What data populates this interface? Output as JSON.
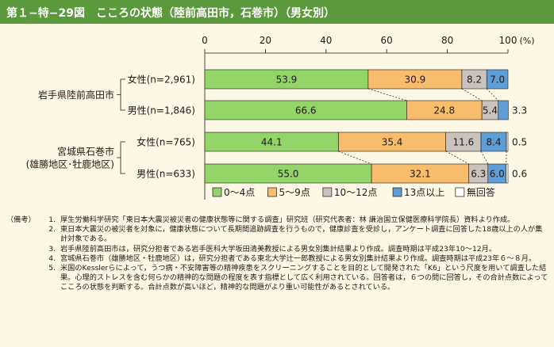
{
  "title": "第１−特−29図　こころの状態（陸前高田市，石巻市）（男女別）",
  "chart_data": {
    "type": "bar",
    "stacked": "horizontal-100pct",
    "x_unit": "(%)",
    "xlim": [
      0,
      100
    ],
    "x_ticks": [
      "0",
      "20",
      "40",
      "60",
      "80",
      "100"
    ],
    "grid": false,
    "legend_position": "bottom",
    "colors": [
      "#92d468",
      "#f8bd6c",
      "#c8c3be",
      "#5d9ed8",
      "#ffffff"
    ],
    "groups": [
      {
        "label": "岩手県陸前高田市",
        "categories": [
          "女性(n=2,961)",
          "男性(n=1,846)"
        ]
      },
      {
        "label": "宮城県石巻市\n(雄勝地区･牡鹿地区)",
        "categories": [
          "女性(n=765)",
          "男性(n=633)"
        ]
      }
    ],
    "categories": [
      "女性(n=2,961)",
      "男性(n=1,846)",
      "女性(n=765)",
      "男性(n=633)"
    ],
    "series": [
      {
        "name": "0〜4点",
        "values": [
          53.9,
          66.6,
          44.1,
          55.0
        ],
        "labels": [
          "53.9",
          "66.6",
          "44.1",
          "55.0"
        ]
      },
      {
        "name": "5〜9点",
        "values": [
          30.9,
          24.8,
          35.4,
          32.1
        ],
        "labels": [
          "30.9",
          "24.8",
          "35.4",
          "32.1"
        ]
      },
      {
        "name": "10〜12点",
        "values": [
          8.2,
          5.4,
          11.6,
          6.3
        ],
        "labels": [
          "8.2",
          "5.4",
          "11.6",
          "6.3"
        ]
      },
      {
        "name": "13点以上",
        "values": [
          7.0,
          3.3,
          8.4,
          6.0
        ],
        "labels": [
          "7.0",
          "3.3",
          "8.4",
          "6.0"
        ]
      },
      {
        "name": "無回答",
        "values": [
          0.0,
          0.0,
          0.5,
          0.6
        ],
        "labels": [
          "",
          "",
          "0.5",
          "0.6"
        ]
      }
    ],
    "outside_labels": [
      {
        "row": 1,
        "series": 3,
        "text": "3.3"
      },
      {
        "row": 2,
        "series": 4,
        "text": "0.5"
      },
      {
        "row": 3,
        "series": 4,
        "text": "0.6"
      }
    ]
  },
  "notes": {
    "prefix": "（備考）",
    "items": [
      {
        "num": "1.",
        "text": "厚生労働科学研究「東日本大震災被災者の健康状態等に関する調査」研究班（研究代表者：林 謙治国立保健医療科学院長）資料より作成。"
      },
      {
        "num": "2.",
        "text": "東日本大震災の被災者を対象に，健康状態について長期間追跡調査を行うもので，健康診査を受診し，アンケート調査に回答した18歳以上の人が集計対象である。"
      },
      {
        "num": "3.",
        "text": "岩手県陸前高田市は，研究分担者である岩手医科大学坂田清美教授による男女別集計結果より作成。調査時期は平成23年10〜12月。"
      },
      {
        "num": "4.",
        "text": "宮城県石巻市（雄勝地区・牡鹿地区）は，研究分担者である東北大学辻一郎教授による男女別集計結果より作成。調査時期は平成23年６〜８月。"
      },
      {
        "num": "5.",
        "text": "米国のKesslerらによって，うつ病・不安障害等の精神疾患をスクリーニングすることを目的として開発された「K6」という尺度を用いて調査した結果。心理的ストレスを含む何らかの精神的な問題の程度を表す指標として広く利用されている。回答者は，６つの問に回答し，その合計点数によってこころの状態を判断する。合計点数が高いほど，精神的な問題がより重い可能性があるとされている。"
      }
    ]
  }
}
